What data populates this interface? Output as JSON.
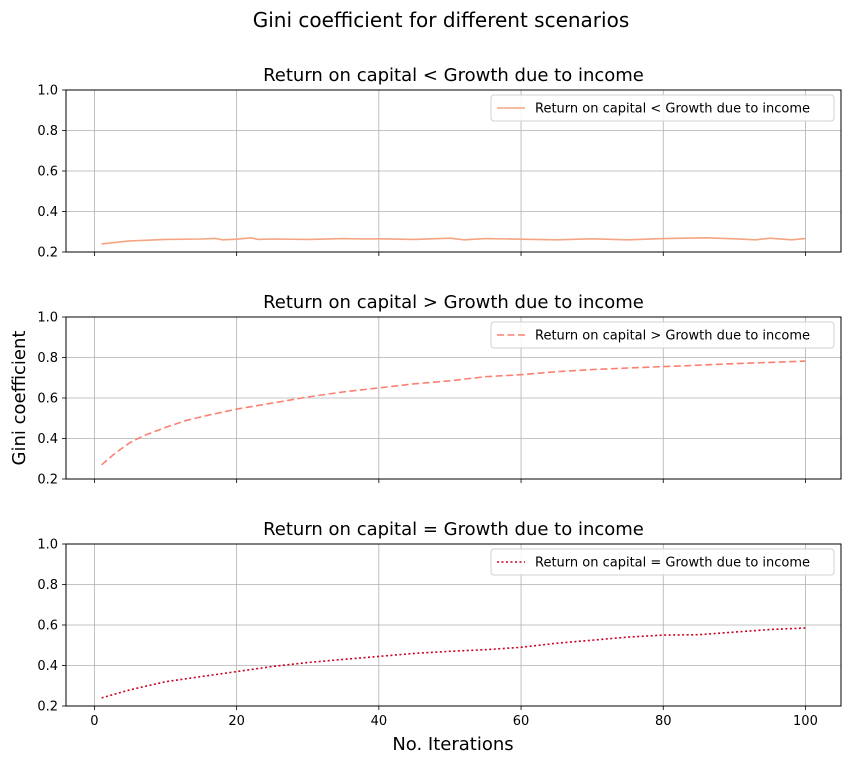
{
  "figure": {
    "title": "Gini coefficient for different scenarios",
    "xlabel": "No. Iterations",
    "ylabel": "Gini coefficient"
  },
  "chart_data": [
    {
      "type": "line",
      "title": "Return on capital < Growth due to income",
      "series": [
        {
          "name": "Return on capital < Growth due to income",
          "color": "#f4a582",
          "style": "solid",
          "x": [
            1,
            5,
            10,
            15,
            17,
            18,
            20,
            22,
            23,
            25,
            30,
            35,
            38,
            40,
            45,
            50,
            52,
            55,
            60,
            65,
            70,
            75,
            80,
            86,
            90,
            93,
            95,
            98,
            100
          ],
          "values": [
            0.24,
            0.255,
            0.262,
            0.264,
            0.267,
            0.26,
            0.263,
            0.27,
            0.262,
            0.264,
            0.262,
            0.266,
            0.264,
            0.265,
            0.262,
            0.268,
            0.26,
            0.266,
            0.263,
            0.26,
            0.265,
            0.26,
            0.266,
            0.27,
            0.265,
            0.26,
            0.268,
            0.26,
            0.266
          ]
        }
      ],
      "xlim": [
        -4,
        105
      ],
      "ylim": [
        0.2,
        1.0
      ],
      "xticks": [
        0,
        20,
        40,
        60,
        80,
        100
      ],
      "yticks": [
        "0.2",
        "0.4",
        "0.6",
        "0.8",
        "1.0"
      ],
      "grid": true,
      "legend_loc": "upper right"
    },
    {
      "type": "line",
      "title": "Return on capital > Growth due to income",
      "series": [
        {
          "name": "Return on capital > Growth due to income",
          "color": "#fb8072",
          "style": "dashed",
          "x": [
            1,
            3,
            5,
            7,
            10,
            13,
            16,
            20,
            25,
            30,
            35,
            40,
            45,
            50,
            55,
            60,
            65,
            70,
            75,
            80,
            85,
            90,
            95,
            100
          ],
          "values": [
            0.27,
            0.33,
            0.38,
            0.415,
            0.455,
            0.49,
            0.515,
            0.545,
            0.575,
            0.605,
            0.63,
            0.65,
            0.67,
            0.685,
            0.705,
            0.715,
            0.73,
            0.74,
            0.748,
            0.755,
            0.762,
            0.77,
            0.776,
            0.782
          ]
        }
      ],
      "xlim": [
        -4,
        105
      ],
      "ylim": [
        0.2,
        1.0
      ],
      "xticks": [
        0,
        20,
        40,
        60,
        80,
        100
      ],
      "yticks": [
        "0.2",
        "0.4",
        "0.6",
        "0.8",
        "1.0"
      ],
      "grid": true,
      "legend_loc": "upper right"
    },
    {
      "type": "line",
      "title": "Return on capital = Growth due to income",
      "series": [
        {
          "name": "Return on capital = Growth due to income",
          "color": "#ca0020",
          "style": "dotted",
          "x": [
            1,
            5,
            10,
            15,
            20,
            25,
            30,
            35,
            40,
            45,
            50,
            55,
            60,
            65,
            70,
            75,
            80,
            85,
            90,
            95,
            100
          ],
          "values": [
            0.24,
            0.28,
            0.32,
            0.345,
            0.37,
            0.395,
            0.415,
            0.43,
            0.445,
            0.46,
            0.47,
            0.478,
            0.49,
            0.51,
            0.525,
            0.54,
            0.55,
            0.552,
            0.565,
            0.578,
            0.585
          ]
        }
      ],
      "xlim": [
        -4,
        105
      ],
      "ylim": [
        0.2,
        1.0
      ],
      "xticks": [
        0,
        20,
        40,
        60,
        80,
        100
      ],
      "yticks": [
        "0.2",
        "0.4",
        "0.6",
        "0.8",
        "1.0"
      ],
      "grid": true,
      "legend_loc": "upper right"
    }
  ]
}
